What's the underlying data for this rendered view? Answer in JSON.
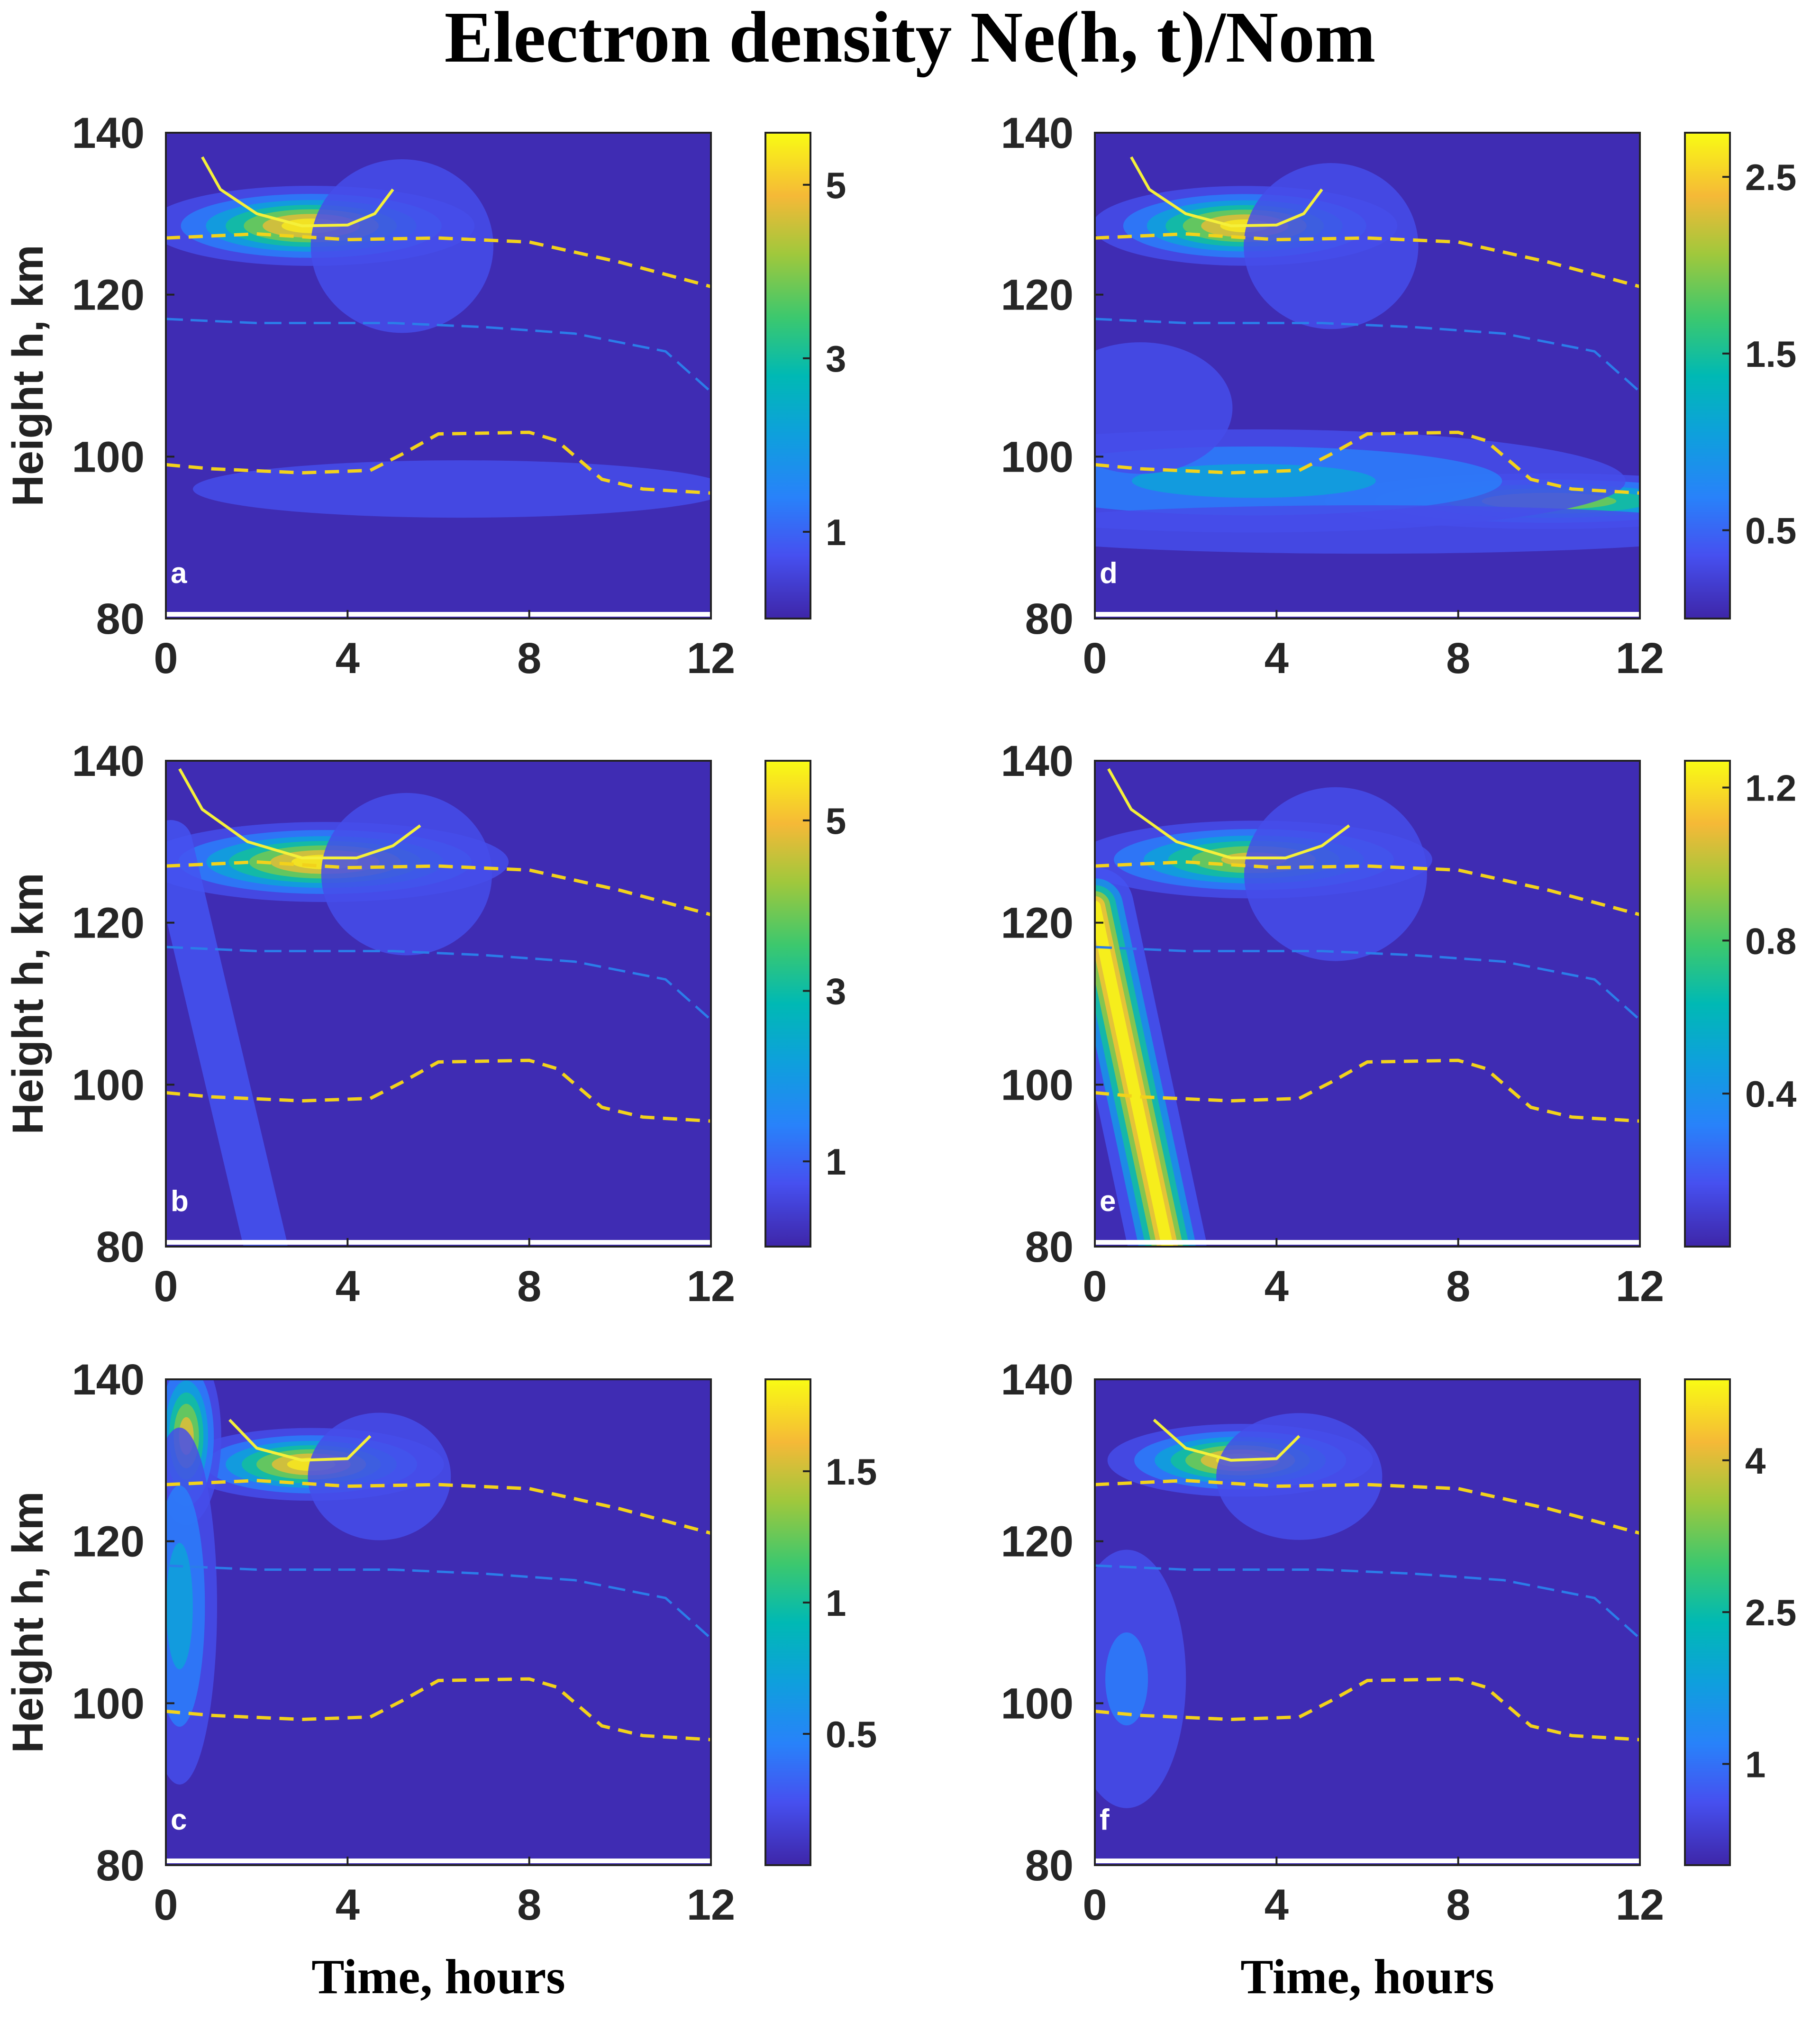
{
  "title": "Electron density Ne(h, t)/Nom",
  "colors": {
    "background": "#3a1fb8",
    "gold_dashed": "#f2d21b",
    "blue_dashed": "#2b7de9",
    "solid_curve": "#f5f03a"
  },
  "chart_data": [
    {
      "type": "heatmap",
      "panel": "a",
      "xlabel": "",
      "ylabel": "Height h, km",
      "xlim": [
        0,
        12
      ],
      "ylim": [
        80,
        140
      ],
      "xticks": [
        0,
        4,
        8,
        12
      ],
      "yticks": [
        80,
        100,
        120,
        140
      ],
      "colorbar": {
        "range": [
          0,
          5.6
        ],
        "ticks": [
          1,
          3,
          5
        ]
      },
      "features": [
        {
          "t": 3.2,
          "h": 128.5,
          "sigma_t": 1.6,
          "sigma_h": 2.2,
          "value": 5.6
        },
        {
          "t": 5.2,
          "h": 126,
          "sigma_t": 1.5,
          "sigma_h": 8,
          "value": 1.1
        },
        {
          "t": 6.5,
          "h": 96,
          "sigma_t": 5,
          "sigma_h": 3,
          "value": 0.9
        }
      ],
      "lines": {
        "upper_dashed": [
          [
            0,
            127
          ],
          [
            2,
            127.5
          ],
          [
            4,
            126.8
          ],
          [
            6,
            127
          ],
          [
            8,
            126.5
          ],
          [
            10,
            124
          ],
          [
            12,
            121
          ]
        ],
        "blue_dashed": [
          [
            0,
            117
          ],
          [
            2,
            116.5
          ],
          [
            5,
            116.5
          ],
          [
            7,
            116
          ],
          [
            9,
            115.2
          ],
          [
            11,
            113
          ],
          [
            12,
            108
          ]
        ],
        "lower_dashed": [
          [
            0,
            99
          ],
          [
            1,
            98.5
          ],
          [
            3,
            98
          ],
          [
            4.5,
            98.3
          ],
          [
            5.2,
            100.3
          ],
          [
            6,
            102.8
          ],
          [
            8,
            103
          ],
          [
            8.6,
            102
          ],
          [
            9.6,
            97.2
          ],
          [
            10.5,
            96
          ],
          [
            12,
            95.5
          ]
        ],
        "solid": [
          [
            0.8,
            137
          ],
          [
            1.2,
            133
          ],
          [
            2,
            130
          ],
          [
            3,
            128.5
          ],
          [
            4,
            128.6
          ],
          [
            4.6,
            130
          ],
          [
            5,
            133
          ]
        ]
      }
    },
    {
      "type": "heatmap",
      "panel": "b",
      "xlabel": "",
      "ylabel": "Height h, km",
      "xlim": [
        0,
        12
      ],
      "ylim": [
        80,
        140
      ],
      "xticks": [
        0,
        4,
        8,
        12
      ],
      "yticks": [
        80,
        100,
        120,
        140
      ],
      "colorbar": {
        "range": [
          0,
          5.7
        ],
        "ticks": [
          1,
          3,
          5
        ]
      },
      "features": [
        {
          "t": 3.5,
          "h": 127.5,
          "sigma_t": 1.8,
          "sigma_h": 2.2,
          "value": 5.7
        },
        {
          "t": 5.3,
          "h": 126,
          "sigma_t": 1.5,
          "sigma_h": 8,
          "value": 1.0
        }
      ],
      "streak": {
        "from": [
          0.1,
          130
        ],
        "to": [
          2.2,
          80
        ],
        "width": 0.5,
        "value": 0.9
      },
      "lines": {
        "upper_dashed": [
          [
            0,
            127
          ],
          [
            2,
            127.5
          ],
          [
            4,
            126.8
          ],
          [
            6,
            127
          ],
          [
            8,
            126.5
          ],
          [
            10,
            124
          ],
          [
            12,
            121
          ]
        ],
        "blue_dashed": [
          [
            0,
            117
          ],
          [
            2,
            116.5
          ],
          [
            5,
            116.5
          ],
          [
            7,
            116
          ],
          [
            9,
            115.2
          ],
          [
            11,
            113
          ],
          [
            12,
            108
          ]
        ],
        "lower_dashed": [
          [
            0,
            99
          ],
          [
            1,
            98.5
          ],
          [
            3,
            98
          ],
          [
            4.5,
            98.3
          ],
          [
            5.2,
            100.3
          ],
          [
            6,
            102.8
          ],
          [
            8,
            103
          ],
          [
            8.6,
            102
          ],
          [
            9.6,
            97.2
          ],
          [
            10.5,
            96
          ],
          [
            12,
            95.5
          ]
        ],
        "solid": [
          [
            0.3,
            139
          ],
          [
            0.8,
            134
          ],
          [
            1.8,
            130
          ],
          [
            3,
            128
          ],
          [
            4.2,
            128
          ],
          [
            5,
            129.5
          ],
          [
            5.6,
            132
          ]
        ]
      }
    },
    {
      "type": "heatmap",
      "panel": "c",
      "xlabel": "Time, hours",
      "ylabel": "Height h, km",
      "xlim": [
        0,
        12
      ],
      "ylim": [
        80,
        140
      ],
      "xticks": [
        0,
        4,
        8,
        12
      ],
      "yticks": [
        80,
        100,
        120,
        140
      ],
      "colorbar": {
        "range": [
          0,
          1.85
        ],
        "ticks": [
          0.5,
          1,
          1.5
        ]
      },
      "features": [
        {
          "t": 3.2,
          "h": 129.5,
          "sigma_t": 1.3,
          "sigma_h": 2.0,
          "value": 1.85
        },
        {
          "t": 0.45,
          "h": 133,
          "sigma_t": 0.35,
          "sigma_h": 5,
          "value": 1.65
        },
        {
          "t": 0.3,
          "h": 112,
          "sigma_t": 0.45,
          "sigma_h": 12,
          "value": 0.8
        },
        {
          "t": 4.7,
          "h": 128,
          "sigma_t": 1.2,
          "sigma_h": 6,
          "value": 0.35
        }
      ],
      "lines": {
        "upper_dashed": [
          [
            0,
            127
          ],
          [
            2,
            127.5
          ],
          [
            4,
            126.8
          ],
          [
            6,
            127
          ],
          [
            8,
            126.5
          ],
          [
            10,
            124
          ],
          [
            12,
            121
          ]
        ],
        "blue_dashed": [
          [
            0,
            117
          ],
          [
            2,
            116.5
          ],
          [
            5,
            116.5
          ],
          [
            7,
            116
          ],
          [
            9,
            115.2
          ],
          [
            11,
            113
          ],
          [
            12,
            108
          ]
        ],
        "lower_dashed": [
          [
            0,
            99
          ],
          [
            1,
            98.5
          ],
          [
            3,
            98
          ],
          [
            4.5,
            98.3
          ],
          [
            5.2,
            100.3
          ],
          [
            6,
            102.8
          ],
          [
            8,
            103
          ],
          [
            8.6,
            102
          ],
          [
            9.6,
            97.2
          ],
          [
            10.5,
            96
          ],
          [
            12,
            95.5
          ]
        ],
        "solid": [
          [
            1.4,
            135
          ],
          [
            2,
            131.5
          ],
          [
            3,
            130
          ],
          [
            4,
            130.2
          ],
          [
            4.5,
            133
          ]
        ]
      }
    },
    {
      "type": "heatmap",
      "panel": "d",
      "xlabel": "",
      "ylabel": "",
      "xlim": [
        0,
        12
      ],
      "ylim": [
        80,
        140
      ],
      "xticks": [
        0,
        4,
        8,
        12
      ],
      "yticks": [
        80,
        100,
        120,
        140
      ],
      "colorbar": {
        "range": [
          0,
          2.75
        ],
        "ticks": [
          0.5,
          1.5,
          2.5
        ]
      },
      "features": [
        {
          "t": 3.3,
          "h": 128.5,
          "sigma_t": 1.5,
          "sigma_h": 2.2,
          "value": 2.7
        },
        {
          "t": 10,
          "h": 94.5,
          "sigma_t": 2.3,
          "sigma_h": 1.6,
          "value": 2.2
        },
        {
          "t": 3.5,
          "h": 97,
          "sigma_t": 4.5,
          "sigma_h": 3.5,
          "value": 1.15
        },
        {
          "t": 1,
          "h": 106,
          "sigma_t": 1.5,
          "sigma_h": 6,
          "value": 0.55
        },
        {
          "t": 5.2,
          "h": 126,
          "sigma_t": 1.5,
          "sigma_h": 8,
          "value": 0.5
        },
        {
          "t": 6,
          "h": 91,
          "sigma_t": 7,
          "sigma_h": 2.5,
          "value": 0.45
        }
      ],
      "lines": {
        "upper_dashed": [
          [
            0,
            127
          ],
          [
            2,
            127.5
          ],
          [
            4,
            126.8
          ],
          [
            6,
            127
          ],
          [
            8,
            126.5
          ],
          [
            10,
            124
          ],
          [
            12,
            121
          ]
        ],
        "blue_dashed": [
          [
            0,
            117
          ],
          [
            2,
            116.5
          ],
          [
            5,
            116.5
          ],
          [
            7,
            116
          ],
          [
            9,
            115.2
          ],
          [
            11,
            113
          ],
          [
            12,
            108
          ]
        ],
        "lower_dashed": [
          [
            0,
            99
          ],
          [
            1,
            98.5
          ],
          [
            3,
            98
          ],
          [
            4.5,
            98.3
          ],
          [
            5.2,
            100.3
          ],
          [
            6,
            102.8
          ],
          [
            8,
            103
          ],
          [
            8.6,
            102
          ],
          [
            9.6,
            97.2
          ],
          [
            10.5,
            96
          ],
          [
            12,
            95.5
          ]
        ],
        "solid": [
          [
            0.8,
            137
          ],
          [
            1.2,
            133
          ],
          [
            2,
            130
          ],
          [
            3,
            128.5
          ],
          [
            4,
            128.6
          ],
          [
            4.6,
            130
          ],
          [
            5,
            133
          ]
        ]
      }
    },
    {
      "type": "heatmap",
      "panel": "e",
      "xlabel": "",
      "ylabel": "",
      "xlim": [
        0,
        12
      ],
      "ylim": [
        80,
        140
      ],
      "xticks": [
        0,
        4,
        8,
        12
      ],
      "yticks": [
        80,
        100,
        120,
        140
      ],
      "colorbar": {
        "range": [
          0,
          1.27
        ],
        "ticks": [
          0.4,
          0.8,
          1.2
        ]
      },
      "features": [
        {
          "t": 3.5,
          "h": 127.8,
          "sigma_t": 1.8,
          "sigma_h": 2.2,
          "value": 1.1
        },
        {
          "t": 5.3,
          "h": 126,
          "sigma_t": 1.5,
          "sigma_h": 8,
          "value": 0.25
        }
      ],
      "streak": {
        "from": [
          0.0,
          122
        ],
        "to": [
          1.6,
          80
        ],
        "width": 0.4,
        "value": 1.27
      },
      "lines": {
        "upper_dashed": [
          [
            0,
            127
          ],
          [
            2,
            127.5
          ],
          [
            4,
            126.8
          ],
          [
            6,
            127
          ],
          [
            8,
            126.5
          ],
          [
            10,
            124
          ],
          [
            12,
            121
          ]
        ],
        "blue_dashed": [
          [
            0,
            117
          ],
          [
            2,
            116.5
          ],
          [
            5,
            116.5
          ],
          [
            7,
            116
          ],
          [
            9,
            115.2
          ],
          [
            11,
            113
          ],
          [
            12,
            108
          ]
        ],
        "lower_dashed": [
          [
            0,
            99
          ],
          [
            1,
            98.5
          ],
          [
            3,
            98
          ],
          [
            4.5,
            98.3
          ],
          [
            5.2,
            100.3
          ],
          [
            6,
            102.8
          ],
          [
            8,
            103
          ],
          [
            8.6,
            102
          ],
          [
            9.6,
            97.2
          ],
          [
            10.5,
            96
          ],
          [
            12,
            95.5
          ]
        ],
        "solid": [
          [
            0.3,
            139
          ],
          [
            0.8,
            134
          ],
          [
            1.8,
            130
          ],
          [
            3,
            128
          ],
          [
            4.2,
            128
          ],
          [
            5,
            129.5
          ],
          [
            5.6,
            132
          ]
        ]
      }
    },
    {
      "type": "heatmap",
      "panel": "f",
      "xlabel": "Time, hours",
      "ylabel": "",
      "xlim": [
        0,
        12
      ],
      "ylim": [
        80,
        140
      ],
      "xticks": [
        0,
        4,
        8,
        12
      ],
      "yticks": [
        80,
        100,
        120,
        140
      ],
      "colorbar": {
        "range": [
          0,
          4.8
        ],
        "ticks": [
          1,
          2.5,
          4
        ]
      },
      "features": [
        {
          "t": 3.2,
          "h": 130,
          "sigma_t": 1.3,
          "sigma_h": 2.0,
          "value": 4.8
        },
        {
          "t": 0.7,
          "h": 103,
          "sigma_t": 0.9,
          "sigma_h": 11,
          "value": 1.1
        },
        {
          "t": 4.5,
          "h": 128,
          "sigma_t": 1.4,
          "sigma_h": 6,
          "value": 0.9
        }
      ],
      "lines": {
        "upper_dashed": [
          [
            0,
            127
          ],
          [
            2,
            127.5
          ],
          [
            4,
            126.8
          ],
          [
            6,
            127
          ],
          [
            8,
            126.5
          ],
          [
            10,
            124
          ],
          [
            12,
            121
          ]
        ],
        "blue_dashed": [
          [
            0,
            117
          ],
          [
            2,
            116.5
          ],
          [
            5,
            116.5
          ],
          [
            7,
            116
          ],
          [
            9,
            115.2
          ],
          [
            11,
            113
          ],
          [
            12,
            108
          ]
        ],
        "lower_dashed": [
          [
            0,
            99
          ],
          [
            1,
            98.5
          ],
          [
            3,
            98
          ],
          [
            4.5,
            98.3
          ],
          [
            5.2,
            100.3
          ],
          [
            6,
            102.8
          ],
          [
            8,
            103
          ],
          [
            8.6,
            102
          ],
          [
            9.6,
            97.2
          ],
          [
            10.5,
            96
          ],
          [
            12,
            95.5
          ]
        ],
        "solid": [
          [
            1.3,
            135
          ],
          [
            2,
            131.5
          ],
          [
            3,
            130
          ],
          [
            4,
            130.2
          ],
          [
            4.5,
            133
          ]
        ]
      }
    }
  ]
}
